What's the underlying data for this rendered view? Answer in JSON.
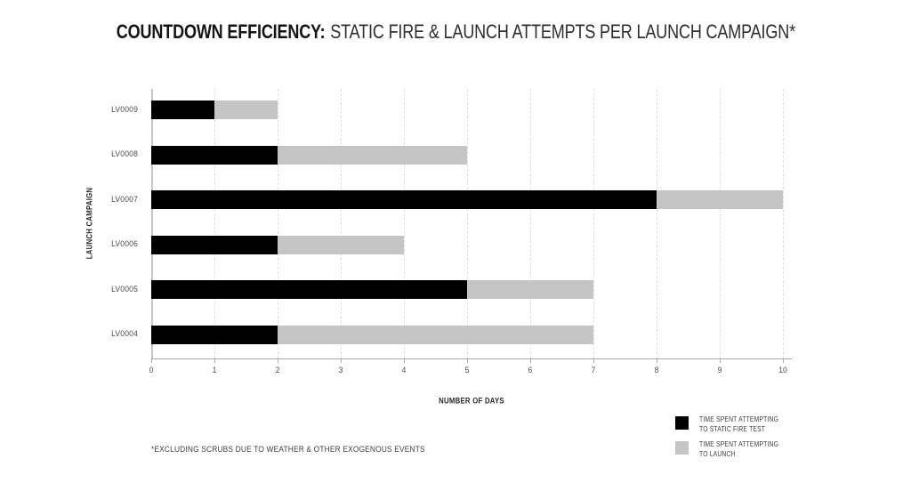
{
  "title": {
    "bold": "COUNTDOWN EFFICIENCY:",
    "regular": "STATIC FIRE & LAUNCH ATTEMPTS PER LAUNCH CAMPAIGN*"
  },
  "chart_data": {
    "type": "bar",
    "orientation": "horizontal",
    "stacked": true,
    "title": "COUNTDOWN EFFICIENCY: STATIC FIRE & LAUNCH ATTEMPTS PER LAUNCH CAMPAIGN*",
    "categories": [
      "LV0009",
      "LV0008",
      "LV0007",
      "LV0006",
      "LV0005",
      "LV0004"
    ],
    "series": [
      {
        "name": "TIME SPENT ATTEMPTING TO STATIC FIRE TEST",
        "color": "#000000",
        "values": [
          1,
          2,
          8,
          2,
          5,
          2
        ]
      },
      {
        "name": "TIME SPENT ATTEMPTING TO LAUNCH",
        "color": "#c5c5c5",
        "values": [
          1,
          3,
          2,
          2,
          2,
          5
        ]
      }
    ],
    "xlabel": "NUMBER OF DAYS",
    "ylabel": "LAUNCH CAMPAIGN",
    "xlim": [
      0,
      10
    ],
    "xticks": [
      0,
      1,
      2,
      3,
      4,
      5,
      6,
      7,
      8,
      9,
      10
    ],
    "grid": "vertical-dashed",
    "legend_position": "bottom-right"
  },
  "legend": [
    {
      "lines": [
        "TIME SPENT ATTEMPTING",
        "TO STATIC FIRE TEST"
      ],
      "color": "#000000"
    },
    {
      "lines": [
        "TIME SPENT ATTEMPTING",
        "TO LAUNCH"
      ],
      "color": "#c5c5c5"
    }
  ],
  "footnote": "*EXCLUDING SCRUBS DUE TO WEATHER & OTHER EXOGENOUS EVENTS",
  "colors": {
    "static_fire": "#000000",
    "launch": "#c5c5c5",
    "gridline": "#e0e0e0",
    "axis": "#a9a9a9"
  }
}
